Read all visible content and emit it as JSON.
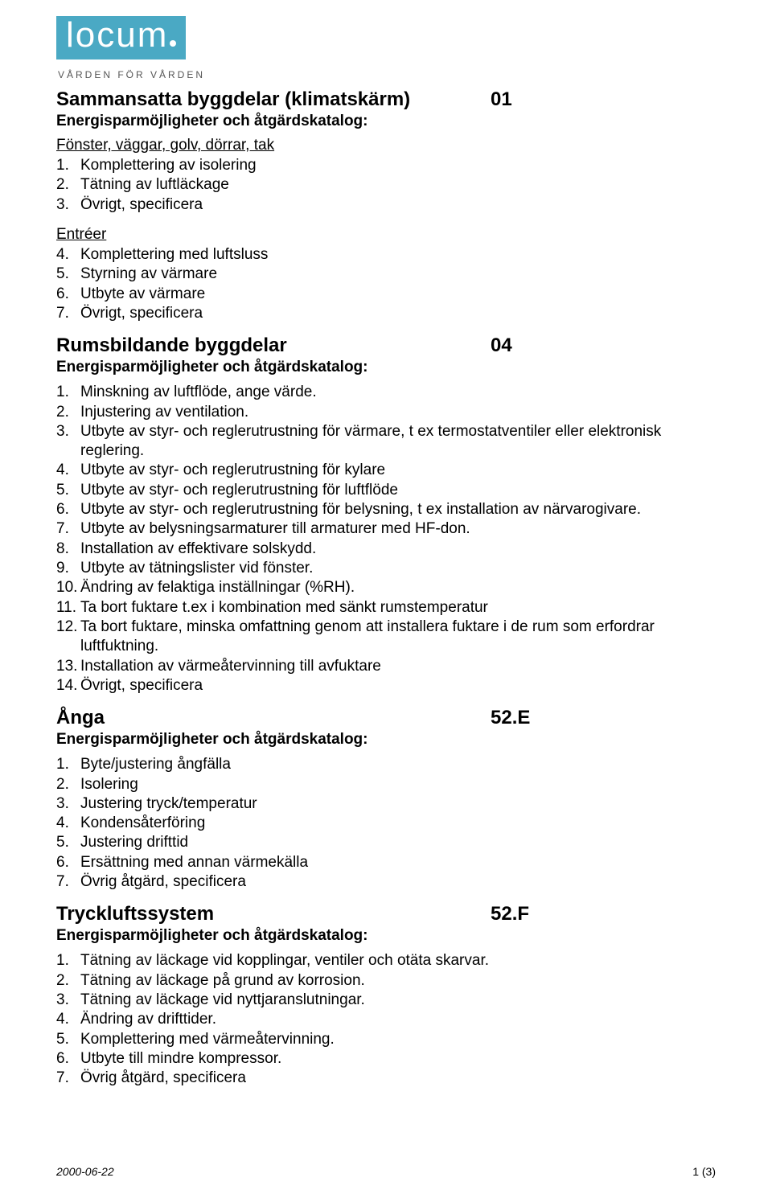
{
  "logo": {
    "text": "locum",
    "tagline": "VÅRDEN FÖR VÅRDEN"
  },
  "sections": [
    {
      "title": "Sammansatta byggdelar (klimatskärm)",
      "code": "01",
      "subheader": "Energisparmöjligheter och åtgärdskatalog:",
      "groups": [
        {
          "label": "Fönster, väggar, golv, dörrar, tak",
          "items": [
            "Komplettering av isolering",
            "Tätning av luftläckage",
            "Övrigt, specificera"
          ]
        },
        {
          "label": "Entréer",
          "startAt": 4,
          "items": [
            "Komplettering med luftsluss",
            "Styrning av värmare",
            "Utbyte av värmare",
            "Övrigt, specificera"
          ]
        }
      ]
    },
    {
      "title": "Rumsbildande byggdelar",
      "code": "04",
      "subheader": "Energisparmöjligheter och åtgärdskatalog:",
      "groups": [
        {
          "items": [
            "Minskning av luftflöde, ange värde.",
            "Injustering av ventilation.",
            "Utbyte av styr- och reglerutrustning för värmare, t ex termostatventiler eller elektronisk reglering.",
            "Utbyte av styr- och reglerutrustning för kylare",
            "Utbyte av styr- och reglerutrustning för luftflöde",
            "Utbyte av styr- och reglerutrustning för belysning, t ex installation av närvarogivare.",
            "Utbyte av belysningsarmaturer till armaturer med HF-don.",
            "Installation av effektivare solskydd.",
            "Utbyte av tätningslister vid fönster.",
            "Ändring av felaktiga inställningar (%RH).",
            "Ta bort fuktare t.ex i kombination med sänkt rumstemperatur",
            "Ta bort fuktare, minska omfattning genom att installera fuktare i de rum som erfordrar luftfuktning.",
            "Installation av värmeåtervinning till avfuktare",
            "Övrigt, specificera"
          ]
        }
      ]
    },
    {
      "title": "Ånga",
      "code": "52.E",
      "subheader": "Energisparmöjligheter och åtgärdskatalog:",
      "groups": [
        {
          "items": [
            "Byte/justering ångfälla",
            "Isolering",
            "Justering tryck/temperatur",
            "Kondensåterföring",
            "Justering drifttid",
            "Ersättning med annan värmekälla",
            "Övrig åtgärd, specificera"
          ]
        }
      ]
    },
    {
      "title": "Tryckluftssystem",
      "code": "52.F",
      "subheader": "Energisparmöjligheter och åtgärdskatalog:",
      "groups": [
        {
          "items": [
            "Tätning av läckage vid kopplingar, ventiler och otäta skarvar.",
            "Tätning av läckage på grund av korrosion.",
            "Tätning av läckage vid nyttjaranslutningar.",
            "Ändring av drifttider.",
            "Komplettering med värmeåtervinning.",
            "Utbyte till mindre kompressor.",
            "Övrig åtgärd, specificera"
          ]
        }
      ]
    }
  ],
  "footer": {
    "date": "2000-06-22",
    "page": "1 (3)"
  }
}
